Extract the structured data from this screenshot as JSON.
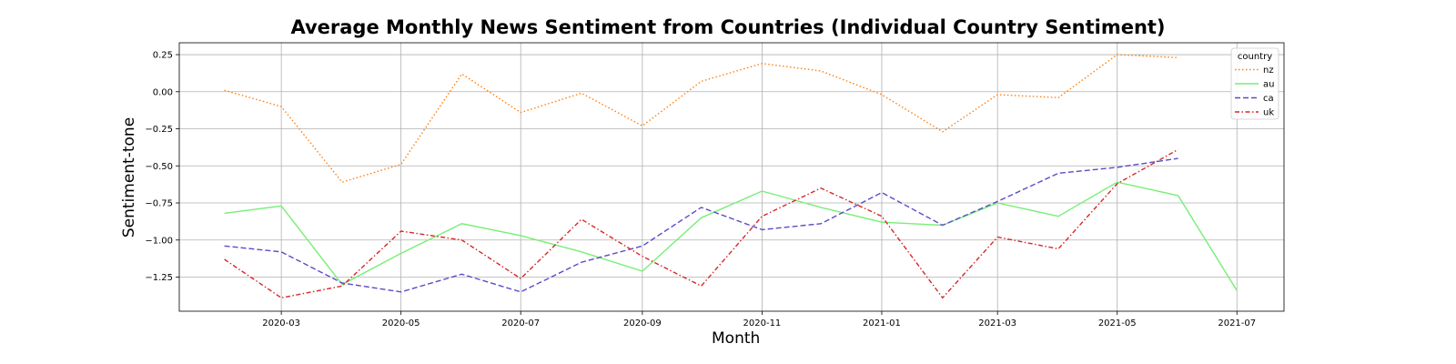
{
  "chart_data": {
    "type": "line",
    "title": "Average Monthly News Sentiment from Countries (Individual Country Sentiment)",
    "xlabel": "Month",
    "ylabel": "Sentiment-tone",
    "x_tick_labels": [
      "2020-03",
      "2020-05",
      "2020-07",
      "2020-09",
      "2020-11",
      "2021-01",
      "2021-03",
      "2021-05",
      "2021-07"
    ],
    "y_ticks": [
      0.25,
      0.0,
      -0.25,
      -0.5,
      -0.75,
      -1.0,
      -1.25
    ],
    "y_tick_labels": [
      "0.25",
      "0.00",
      "−0.25",
      "−0.50",
      "−0.75",
      "−1.00",
      "−1.25"
    ],
    "xlim": [
      "2020-01-09",
      "2021-07-25"
    ],
    "ylim": [
      -1.48,
      0.33
    ],
    "grid": true,
    "legend": {
      "title": "country",
      "position": "top-right"
    },
    "x": [
      "2020-02",
      "2020-03",
      "2020-04",
      "2020-05",
      "2020-06",
      "2020-07",
      "2020-08",
      "2020-09",
      "2020-10",
      "2020-11",
      "2020-12",
      "2021-01",
      "2021-02",
      "2021-03",
      "2021-04",
      "2021-05",
      "2021-06",
      "2021-07"
    ],
    "series": [
      {
        "name": "nz",
        "color": "#ff7f0e",
        "dash": "dotted",
        "values": [
          0.01,
          -0.1,
          -0.61,
          -0.49,
          0.12,
          -0.14,
          -0.01,
          -0.23,
          0.07,
          0.19,
          0.14,
          -0.02,
          -0.27,
          -0.02,
          -0.04,
          0.25,
          0.23,
          null
        ]
      },
      {
        "name": "au",
        "color": "#77ee77",
        "dash": "solid",
        "values": [
          -0.82,
          -0.77,
          -1.3,
          -1.09,
          -0.89,
          -0.97,
          -1.08,
          -1.21,
          -0.85,
          -0.67,
          -0.78,
          -0.88,
          -0.9,
          -0.75,
          -0.84,
          -0.61,
          -0.7,
          -1.34
        ]
      },
      {
        "name": "ca",
        "color": "#5b4bc8",
        "dash": "dashed",
        "values": [
          -1.04,
          -1.08,
          -1.29,
          -1.35,
          -1.23,
          -1.35,
          -1.15,
          -1.04,
          -0.78,
          -0.93,
          -0.89,
          -0.68,
          -0.9,
          -0.74,
          -0.55,
          -0.51,
          -0.45,
          null
        ]
      },
      {
        "name": "uk",
        "color": "#d62728",
        "dash": "dashdot",
        "values": [
          -1.13,
          -1.39,
          -1.31,
          -0.94,
          -1.0,
          -1.26,
          -0.86,
          -1.11,
          -1.31,
          -0.84,
          -0.65,
          -0.84,
          -1.39,
          -0.98,
          -1.06,
          -0.62,
          -0.39,
          null
        ]
      }
    ]
  }
}
